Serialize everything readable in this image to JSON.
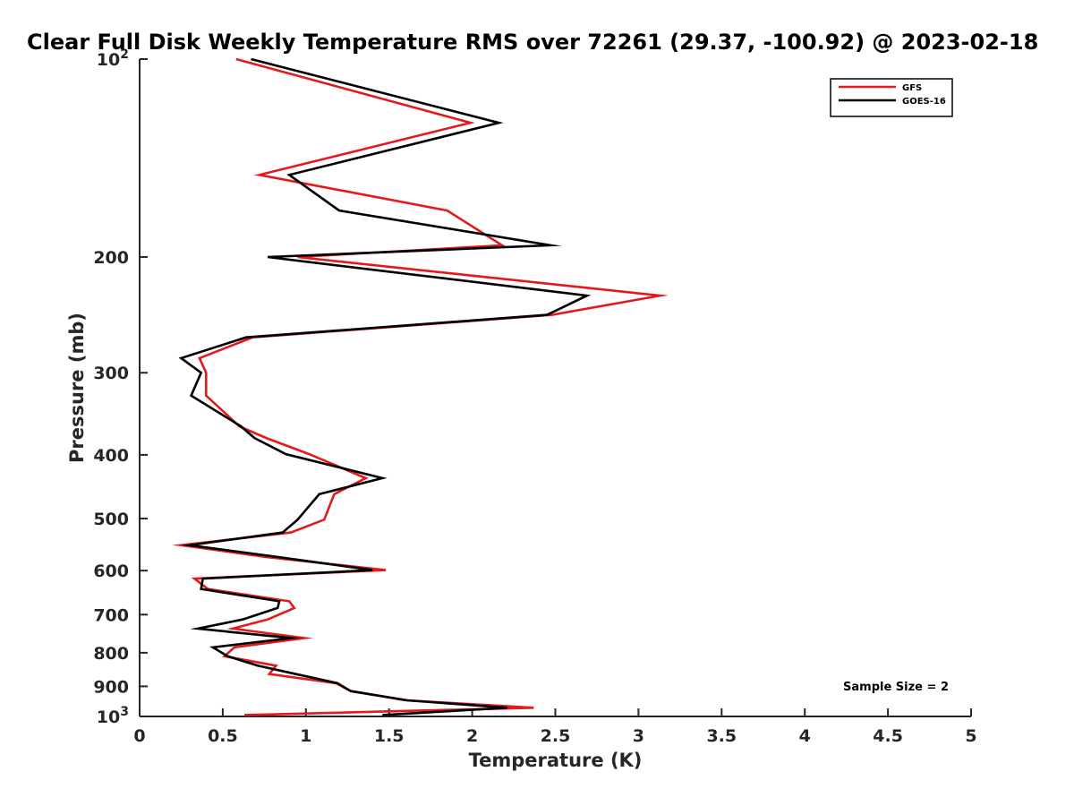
{
  "chart_data": {
    "type": "line",
    "title": "Clear Full Disk Weekly Temperature RMS over 72261 (29.37, -100.92) @ 2023-02-18",
    "xlabel": "Temperature (K)",
    "ylabel": "Pressure (mb)",
    "xlim": [
      0,
      5
    ],
    "ylim": [
      100,
      1000
    ],
    "y_scale": "log",
    "y_reversed": true,
    "x_ticks": [
      "0",
      "0.5",
      "1",
      "1.5",
      "2",
      "2.5",
      "3",
      "3.5",
      "4",
      "4.5",
      "5"
    ],
    "y_ticks": [
      {
        "base": "10",
        "exp": "2"
      },
      {
        "label": "200"
      },
      {
        "label": "300"
      },
      {
        "label": "400"
      },
      {
        "label": "500"
      },
      {
        "label": "600"
      },
      {
        "label": "700"
      },
      {
        "label": "800"
      },
      {
        "label": "900"
      },
      {
        "base": "10",
        "exp": "3"
      }
    ],
    "legend_position": "top-right",
    "annotation": "Sample Size = 2",
    "series": [
      {
        "name": "GFS",
        "color": "#e31a1c",
        "points": [
          [
            0.58,
            100
          ],
          [
            1.99,
            125
          ],
          [
            0.72,
            150
          ],
          [
            1.85,
            170
          ],
          [
            2.18,
            192
          ],
          [
            0.95,
            200
          ],
          [
            3.13,
            229
          ],
          [
            2.48,
            245
          ],
          [
            0.68,
            265
          ],
          [
            0.36,
            285
          ],
          [
            0.4,
            300
          ],
          [
            0.4,
            325
          ],
          [
            0.6,
            362
          ],
          [
            0.76,
            377
          ],
          [
            1.02,
            399
          ],
          [
            1.36,
            434
          ],
          [
            1.17,
            459
          ],
          [
            1.11,
            502
          ],
          [
            0.91,
            525
          ],
          [
            0.25,
            549
          ],
          [
            0.76,
            572
          ],
          [
            1.48,
            599
          ],
          [
            0.33,
            617
          ],
          [
            0.41,
            640
          ],
          [
            0.9,
            668
          ],
          [
            0.93,
            684
          ],
          [
            0.77,
            712
          ],
          [
            0.56,
            735
          ],
          [
            0.99,
            760
          ],
          [
            0.57,
            785
          ],
          [
            0.51,
            810
          ],
          [
            0.82,
            837
          ],
          [
            0.78,
            862
          ],
          [
            1.18,
            890
          ],
          [
            1.27,
            915
          ],
          [
            1.6,
            945
          ],
          [
            2.37,
            970
          ],
          [
            0.63,
            995
          ]
        ]
      },
      {
        "name": "GOES-16",
        "color": "#000000",
        "points": [
          [
            0.67,
            100
          ],
          [
            2.16,
            125
          ],
          [
            0.9,
            150
          ],
          [
            1.2,
            170
          ],
          [
            2.47,
            192
          ],
          [
            0.77,
            200
          ],
          [
            2.69,
            229
          ],
          [
            2.45,
            245
          ],
          [
            0.64,
            265
          ],
          [
            0.25,
            285
          ],
          [
            0.37,
            300
          ],
          [
            0.31,
            325
          ],
          [
            0.61,
            362
          ],
          [
            0.69,
            377
          ],
          [
            0.88,
            399
          ],
          [
            1.46,
            434
          ],
          [
            1.08,
            459
          ],
          [
            0.95,
            502
          ],
          [
            0.86,
            525
          ],
          [
            0.3,
            549
          ],
          [
            0.83,
            572
          ],
          [
            1.4,
            599
          ],
          [
            0.38,
            617
          ],
          [
            0.37,
            640
          ],
          [
            0.84,
            668
          ],
          [
            0.83,
            684
          ],
          [
            0.62,
            712
          ],
          [
            0.35,
            735
          ],
          [
            0.91,
            760
          ],
          [
            0.44,
            785
          ],
          [
            0.53,
            810
          ],
          [
            0.71,
            837
          ],
          [
            0.94,
            862
          ],
          [
            1.19,
            890
          ],
          [
            1.27,
            915
          ],
          [
            1.61,
            945
          ],
          [
            2.21,
            970
          ],
          [
            1.46,
            995
          ]
        ]
      }
    ]
  }
}
